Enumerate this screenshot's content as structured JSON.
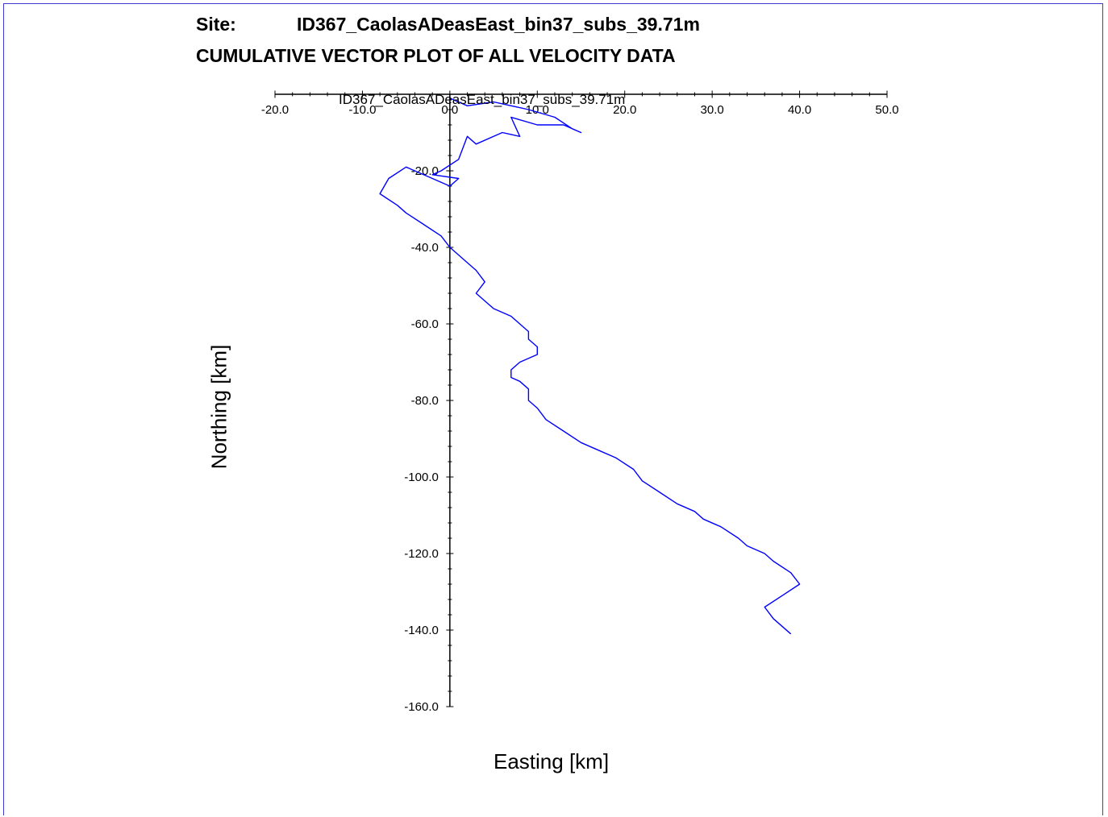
{
  "header": {
    "site_label": "Site:",
    "site_name": "ID367_CaolasADeasEast_bin37_subs_39.71m",
    "title": "CUMULATIVE VECTOR PLOT OF ALL VELOCITY DATA"
  },
  "colors": {
    "track": "#0000ff",
    "axis": "#000000",
    "frame": "#3b3bd1"
  },
  "chart_data": {
    "type": "line",
    "title": "CUMULATIVE VECTOR PLOT OF ALL VELOCITY DATA",
    "plot_caption": "ID367_CaolasADeasEast_bin37_subs_39.71m",
    "xlabel": "Easting [km]",
    "ylabel": "Northing [km]",
    "xlim": [
      -20,
      50
    ],
    "ylim": [
      -160,
      0
    ],
    "x_ticks": [
      "-20.0",
      "-10.0",
      "0.0",
      "10.0",
      "20.0",
      "30.0",
      "40.0",
      "50.0"
    ],
    "y_ticks": [
      "-20.0",
      "-40.0",
      "-60.0",
      "-80.0",
      "-100.0",
      "-120.0",
      "-140.0",
      "-160.0"
    ],
    "grid": false,
    "series": [
      {
        "x": [
          0,
          2,
          5,
          9,
          12,
          14,
          15,
          13,
          10,
          7,
          8,
          6,
          3,
          2,
          1,
          -1,
          -2,
          1,
          0,
          -2,
          -5,
          -7,
          -8,
          -6,
          -5,
          -3,
          -1,
          0,
          1,
          2,
          3,
          4,
          3,
          4,
          5,
          7,
          8,
          9,
          9,
          10,
          10,
          8,
          7,
          7,
          8,
          9,
          9,
          10,
          11,
          13,
          15,
          17,
          19,
          21,
          22,
          24,
          26,
          28,
          29,
          31,
          33,
          34,
          36,
          37,
          39,
          40,
          38,
          36,
          37,
          39
        ],
        "y": [
          -1,
          -3,
          -2,
          -4,
          -6,
          -9,
          -10,
          -8,
          -8,
          -6,
          -11,
          -10,
          -13,
          -11,
          -17,
          -20,
          -21,
          -22,
          -24,
          -22,
          -19,
          -22,
          -26,
          -29,
          -31,
          -34,
          -37,
          -40,
          -42,
          -44,
          -46,
          -49,
          -52,
          -54,
          -56,
          -58,
          -60,
          -62,
          -64,
          -66,
          -68,
          -70,
          -72,
          -74,
          -75,
          -77,
          -80,
          -82,
          -85,
          -88,
          -91,
          -93,
          -95,
          -98,
          -101,
          -104,
          -107,
          -109,
          -111,
          -113,
          -116,
          -118,
          -120,
          -122,
          -125,
          -128,
          -131,
          -134,
          -137,
          -141
        ]
      }
    ]
  }
}
